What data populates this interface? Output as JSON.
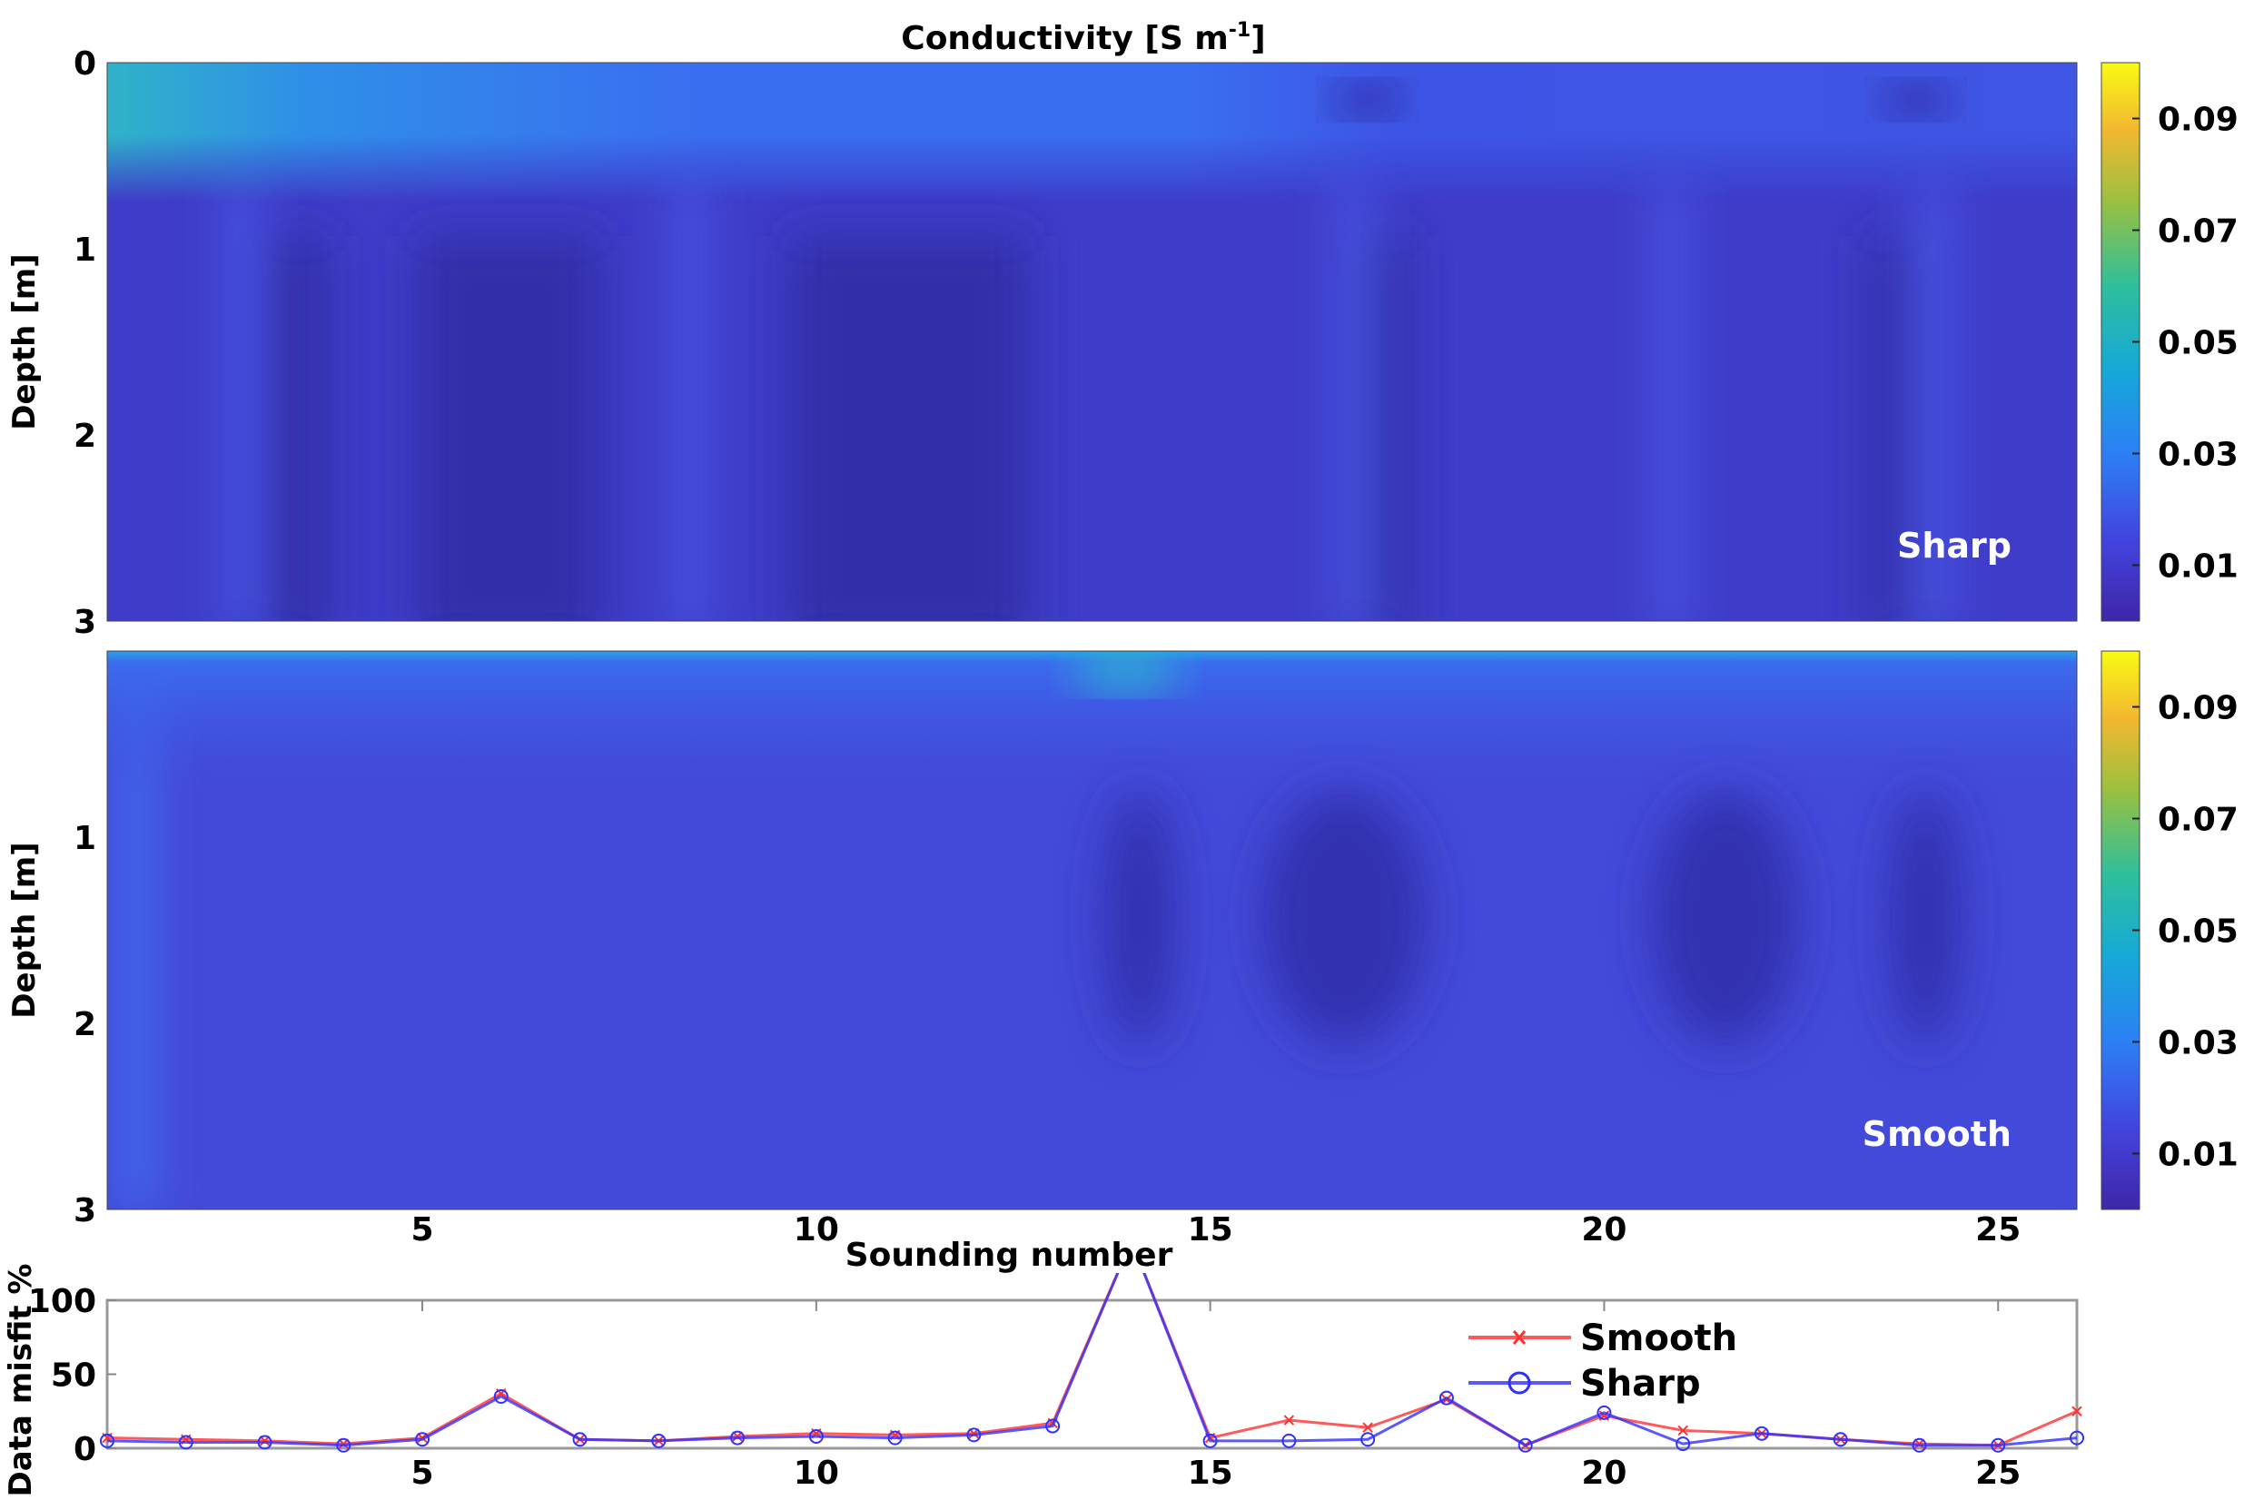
{
  "chart_data": [
    {
      "type": "heatmap",
      "title": "Conductivity [S m",
      "title_superscript": "-1",
      "title_close": "]",
      "ylabel": "Depth [m]",
      "yticks": [
        "0",
        "1",
        "2",
        "3"
      ],
      "ylim": [
        0,
        3
      ],
      "xlim": [
        1,
        26
      ],
      "annotation": "Sharp",
      "colorbar": {
        "ticks": [
          "0.01",
          "0.03",
          "0.05",
          "0.07",
          "0.09"
        ],
        "range": [
          0,
          0.1
        ]
      }
    },
    {
      "type": "heatmap",
      "ylabel": "Depth [m]",
      "yticks": [
        "1",
        "2",
        "3"
      ],
      "ylim": [
        0,
        3
      ],
      "xlabel": "Sounding number",
      "xticks": [
        "5",
        "10",
        "15",
        "20",
        "25"
      ],
      "xlim": [
        1,
        26
      ],
      "annotation": "Smooth",
      "colorbar": {
        "ticks": [
          "0.01",
          "0.03",
          "0.05",
          "0.07",
          "0.09"
        ],
        "range": [
          0,
          0.1
        ]
      }
    },
    {
      "type": "line",
      "ylabel": "Data misfit %",
      "yticks": [
        "0",
        "50",
        "100"
      ],
      "ylim": [
        0,
        100
      ],
      "xticks": [
        "5",
        "10",
        "15",
        "20",
        "25"
      ],
      "xlim": [
        1,
        26
      ],
      "legend": "top-center",
      "x": [
        1,
        2,
        3,
        4,
        5,
        6,
        7,
        8,
        9,
        10,
        11,
        12,
        13,
        14,
        15,
        16,
        17,
        18,
        19,
        20,
        21,
        22,
        23,
        24,
        25,
        26
      ],
      "series": [
        {
          "name": "Smooth",
          "color": "#ff3030",
          "marker": "x",
          "values": [
            7,
            6,
            5,
            3,
            7,
            37,
            6,
            5,
            8,
            10,
            9,
            10,
            17,
            140,
            7,
            19,
            14,
            33,
            2,
            22,
            12,
            10,
            6,
            3,
            2,
            25
          ]
        },
        {
          "name": "Sharp",
          "color": "#3030ff",
          "marker": "o",
          "values": [
            5,
            4,
            4,
            2,
            6,
            35,
            6,
            5,
            7,
            8,
            7,
            9,
            15,
            140,
            5,
            5,
            6,
            34,
            2,
            24,
            3,
            10,
            6,
            2,
            2,
            7
          ]
        }
      ]
    }
  ]
}
